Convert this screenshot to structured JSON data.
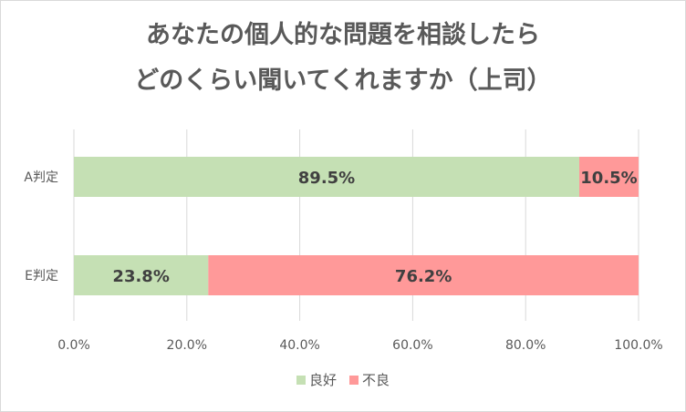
{
  "chart_data": {
    "type": "bar",
    "orientation": "horizontal",
    "stacked": true,
    "title": [
      "あなたの個人的な問題を相談したら",
      "どのくらい聞いてくれますか（上司）"
    ],
    "categories": [
      "A判定",
      "E判定"
    ],
    "series": [
      {
        "name": "良好",
        "values": [
          89.5,
          23.8
        ],
        "labels": [
          "89.5%",
          "23.8%"
        ],
        "color": "#c5e0b4"
      },
      {
        "name": "不良",
        "values": [
          10.5,
          76.2
        ],
        "labels": [
          "10.5%",
          "76.2%"
        ],
        "color": "#ff9999"
      }
    ],
    "xlim": [
      0,
      100
    ],
    "xticks": [
      0,
      20,
      40,
      60,
      80,
      100
    ],
    "xtick_labels": [
      "0.0%",
      "20.0%",
      "40.0%",
      "60.0%",
      "80.0%",
      "100.0%"
    ],
    "grid": "vertical",
    "legend": "bottom"
  }
}
